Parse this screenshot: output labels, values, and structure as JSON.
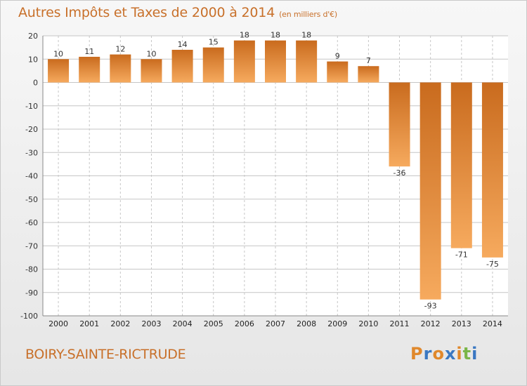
{
  "header": {
    "title": "Autres Impôts et Taxes de 2000 à 2014",
    "unit": "(en milliers d'€)"
  },
  "footer": {
    "place": "BOIRY-SAINTE-RICTRUDE",
    "brand_letters": [
      "P",
      "r",
      "o",
      "x",
      "i",
      "t",
      "i"
    ],
    "brand_colors": [
      "#e0882b",
      "#3a78c2",
      "#e0882b",
      "#3a78c2",
      "#e0882b",
      "#7ab648",
      "#3a78c2"
    ]
  },
  "colors": {
    "accent": "#c8702a",
    "bar_dark": "#c96b1e",
    "bar_light": "#f6aa5e",
    "grid": "#c6c6c6",
    "plot_bg": "#ffffff"
  },
  "chart_data": {
    "type": "bar",
    "title": "Autres Impôts et Taxes de 2000 à 2014",
    "subtitle": "(en milliers d'€)",
    "categories": [
      "2000",
      "2001",
      "2002",
      "2003",
      "2004",
      "2005",
      "2006",
      "2007",
      "2008",
      "2009",
      "2010",
      "2011",
      "2012",
      "2013",
      "2014"
    ],
    "values": [
      10,
      11,
      12,
      10,
      14,
      15,
      18,
      18,
      18,
      9,
      7,
      -36,
      -93,
      -71,
      -75
    ],
    "ylim": [
      -100,
      20
    ],
    "yticks": [
      20,
      10,
      0,
      -10,
      -20,
      -30,
      -40,
      -50,
      -60,
      -70,
      -80,
      -90,
      -100
    ],
    "grid": true
  }
}
